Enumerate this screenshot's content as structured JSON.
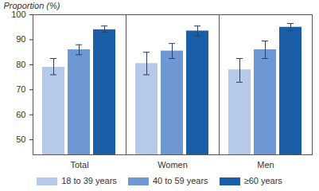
{
  "chart_data": {
    "type": "bar",
    "y_label": "Proportion (%)",
    "categories": [
      "Total",
      "Women",
      "Men"
    ],
    "series": [
      {
        "name": "18 to 39 years",
        "color": "#b7c9e8",
        "values": [
          79,
          80.5,
          78
        ],
        "error": [
          [
            76,
            82.5
          ],
          [
            76,
            85
          ],
          [
            73,
            82.5
          ]
        ]
      },
      {
        "name": "40 to 59 years",
        "color": "#6e98d4",
        "values": [
          86,
          85.5,
          86
        ],
        "error": [
          [
            84,
            88
          ],
          [
            82.5,
            88.5
          ],
          [
            82.5,
            89.5
          ]
        ]
      },
      {
        "name": "≥60 years",
        "color": "#1b5ea8",
        "values": [
          94,
          93.5,
          95
        ],
        "error": [
          [
            93,
            95.5
          ],
          [
            91.5,
            95.5
          ],
          [
            93.5,
            96.5
          ]
        ]
      }
    ],
    "ylim": [
      44,
      100
    ],
    "yticks": [
      50,
      60,
      70,
      80,
      90,
      100
    ],
    "grid": false,
    "legend": "bottom"
  }
}
